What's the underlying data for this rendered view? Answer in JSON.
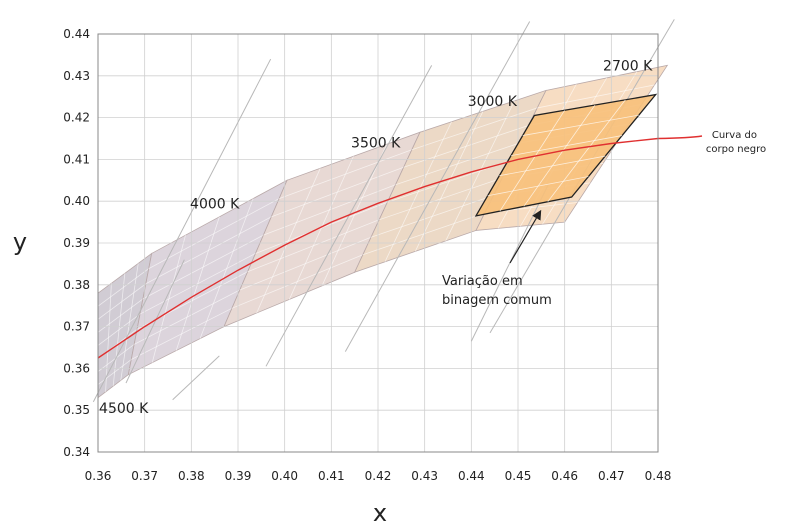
{
  "chart_data": {
    "type": "line",
    "xlabel": "x",
    "ylabel": "y",
    "xlim": [
      0.36,
      0.48
    ],
    "ylim": [
      0.34,
      0.44
    ],
    "grid": true,
    "x_ticks": [
      "0.36",
      "0.37",
      "0.38",
      "0.39",
      "0.40",
      "0.41",
      "0.42",
      "0.43",
      "0.44",
      "0.45",
      "0.46",
      "0.47",
      "0.48"
    ],
    "y_ticks": [
      "0.44",
      "0.43",
      "0.42",
      "0.41",
      "0.40",
      "0.39",
      "0.38",
      "0.37",
      "0.36",
      "0.35",
      "0.34"
    ],
    "colors": {
      "locus": "#e03030",
      "grid": "#d0d0d0",
      "isotherm": "#b8b8b8",
      "region_4500": "#c9c3cc",
      "region_4000": "#d6ccd6",
      "region_3500": "#e4d2cd",
      "region_3000": "#e9d2bc",
      "region_2700": "#f6d7b8",
      "binning": "#f7c07a"
    },
    "series": [
      {
        "name": "Curva do corpo negro",
        "x": [
          0.36,
          0.37,
          0.38,
          0.39,
          0.4,
          0.41,
          0.42,
          0.43,
          0.44,
          0.45,
          0.46,
          0.47,
          0.48
        ],
        "y": [
          0.3625,
          0.37,
          0.377,
          0.3835,
          0.3895,
          0.395,
          0.3995,
          0.4035,
          0.407,
          0.41,
          0.4122,
          0.4138,
          0.415
        ]
      }
    ],
    "isotherm_lines": [
      {
        "x": [
          0.359,
          0.397
        ],
        "y": [
          0.352,
          0.434
        ]
      },
      {
        "x": [
          0.366,
          0.3785
        ],
        "y": [
          0.3565,
          0.386
        ]
      },
      {
        "x": [
          0.376,
          0.386
        ],
        "y": [
          0.3525,
          0.363
        ]
      },
      {
        "x": [
          0.396,
          0.4315
        ],
        "y": [
          0.3605,
          0.4325
        ]
      },
      {
        "x": [
          0.413,
          0.4525
        ],
        "y": [
          0.364,
          0.443
        ]
      },
      {
        "x": [
          0.44,
          0.4565
        ],
        "y": [
          0.3665,
          0.404
        ]
      },
      {
        "x": [
          0.444,
          0.4835
        ],
        "y": [
          0.3685,
          0.4435
        ]
      }
    ],
    "regions": [
      {
        "name": "4500 K",
        "polygon": [
          [
            0.36,
            0.353
          ],
          [
            0.3665,
            0.3585
          ],
          [
            0.3715,
            0.3875
          ],
          [
            0.36,
            0.378
          ]
        ]
      },
      {
        "name": "4000 K",
        "polygon": [
          [
            0.3665,
            0.3585
          ],
          [
            0.387,
            0.37
          ],
          [
            0.4005,
            0.405
          ],
          [
            0.3715,
            0.3875
          ]
        ]
      },
      {
        "name": "3500 K",
        "polygon": [
          [
            0.387,
            0.37
          ],
          [
            0.415,
            0.383
          ],
          [
            0.429,
            0.4165
          ],
          [
            0.4005,
            0.405
          ]
        ]
      },
      {
        "name": "3000 K",
        "polygon": [
          [
            0.415,
            0.383
          ],
          [
            0.441,
            0.393
          ],
          [
            0.456,
            0.4265
          ],
          [
            0.429,
            0.4165
          ]
        ]
      },
      {
        "name": "2700 K",
        "polygon": [
          [
            0.441,
            0.393
          ],
          [
            0.46,
            0.395
          ],
          [
            0.482,
            0.4325
          ],
          [
            0.456,
            0.4265
          ]
        ]
      }
    ],
    "binning_region": {
      "polygon": [
        [
          0.441,
          0.3965
        ],
        [
          0.4615,
          0.401
        ],
        [
          0.4795,
          0.4255
        ],
        [
          0.4535,
          0.4205
        ]
      ]
    },
    "labels": [
      {
        "text": "4500 K",
        "x": 0.3655,
        "y": 0.3505
      },
      {
        "text": "4000 K",
        "x": 0.385,
        "y": 0.3995
      },
      {
        "text": "3500 K",
        "x": 0.4195,
        "y": 0.414
      },
      {
        "text": "3000 K",
        "x": 0.4445,
        "y": 0.424
      },
      {
        "text": "2700 K",
        "x": 0.4735,
        "y": 0.4325
      }
    ],
    "annotations": {
      "locus_label": [
        "Curva do",
        "corpo negro"
      ],
      "binning_label": [
        "Variação em",
        "binagem comum"
      ]
    }
  }
}
